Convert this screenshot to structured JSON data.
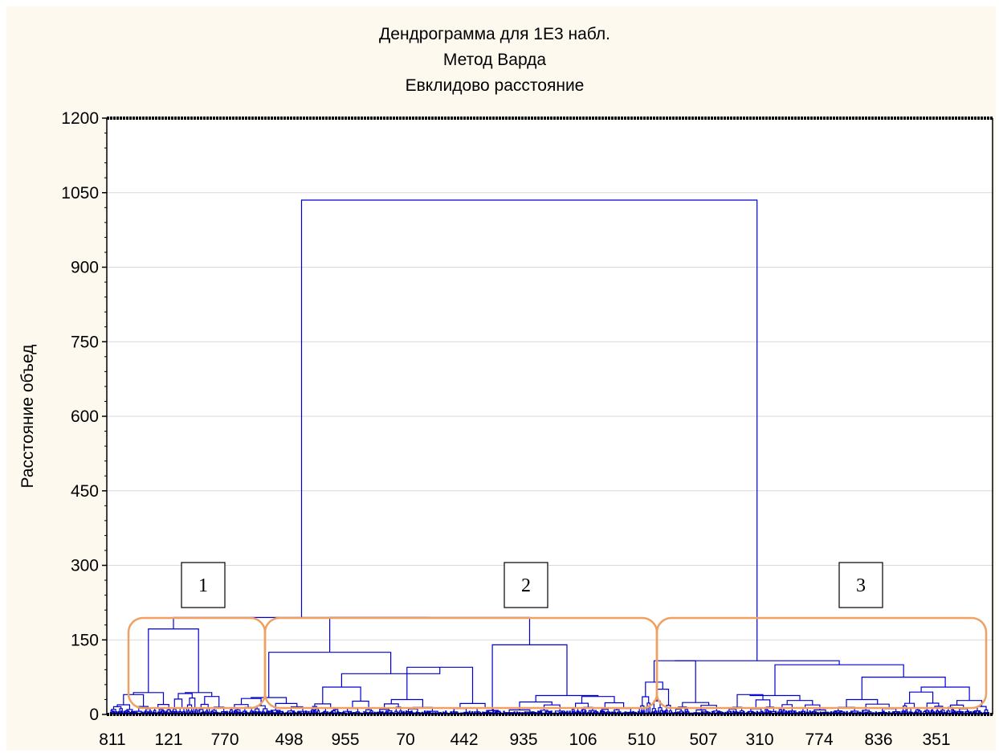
{
  "chart_data": {
    "type": "dendrogram",
    "title": [
      "Дендрограмма для 1E3 набл.",
      "Метод Варда",
      "Евклидово расстояние"
    ],
    "ylabel": "Расстояние объед",
    "xlabel": "",
    "ylim": [
      0,
      1200
    ],
    "y_ticks": [
      0,
      150,
      300,
      450,
      600,
      750,
      900,
      1050,
      1200
    ],
    "x_tick_labels": [
      "811",
      "121",
      "770",
      "498",
      "955",
      "70",
      "442",
      "935",
      "106",
      "510",
      "507",
      "310",
      "774",
      "836",
      "351"
    ],
    "grid": true,
    "line_color": "#0000cc",
    "annotation_color": "#f0a060",
    "n_observations": 1000,
    "clusters": [
      {
        "label": "1",
        "first_obs": 0,
        "last_obs": 135,
        "merge_height": 195
      },
      {
        "label": "2",
        "first_obs": 135,
        "last_obs": 601,
        "merge_height": 195
      },
      {
        "label": "3",
        "first_obs": 601,
        "last_obs": 1000,
        "merge_height": 195
      }
    ],
    "merges": [
      {
        "id": "C1",
        "left": "L1a",
        "right": "R1",
        "height": 195
      },
      {
        "id": "L1a",
        "left": "L1a_l",
        "right": "L1a_r",
        "height": 172
      },
      {
        "id": "C2",
        "left": "C2a",
        "right": "C2b",
        "height": 195
      },
      {
        "id": "C2a",
        "left": "C2a_l",
        "right": "C2a_r",
        "height": 125
      },
      {
        "id": "C2b",
        "left": "C2b_l",
        "right": "C2b_r",
        "height": 140
      },
      {
        "id": "C12",
        "left": "C1",
        "right": "C2",
        "height": 195
      },
      {
        "id": "C3",
        "left": "C3a",
        "right": "C3b",
        "height": 110
      },
      {
        "id": "C3b",
        "left": "C3b_l",
        "right": "C3b_r",
        "height": 100
      },
      {
        "id": "root",
        "left": "C12",
        "right": "C3",
        "height": 1035
      }
    ]
  }
}
